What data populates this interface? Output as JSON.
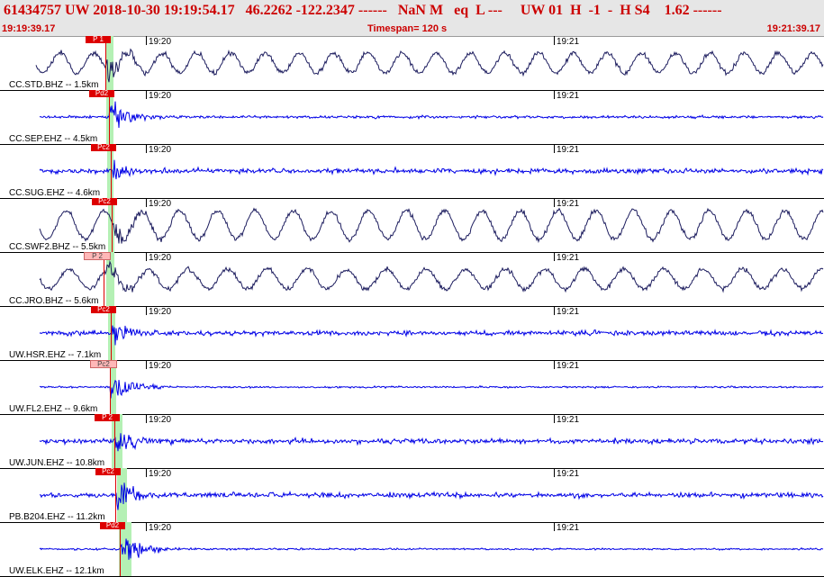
{
  "header": {
    "title": "61434757 UW 2018-10-30 19:19:54.17   46.2262 -122.2347 ------   NaN M   eq  L ---     UW 01  H  -1  -  H S4    1.62 ------",
    "start_time": "19:19:39.17",
    "timespan": "Timespan= 120 s",
    "end_time": "19:21:39.17"
  },
  "time_ticks": [
    "19:20",
    "19:21"
  ],
  "colors": {
    "vertical_bhz": "#1c1c5e",
    "ehz": "#0000e6",
    "pick": "#dd0000",
    "window": "#b4f0b4"
  },
  "traces": [
    {
      "station": "CC.STD.BHZ -- 1.5km",
      "pick": "P 1",
      "kind": "bhz"
    },
    {
      "station": "CC.SEP.EHZ -- 4.5km",
      "pick": "Pd2",
      "kind": "ehz"
    },
    {
      "station": "CC.SUG.EHZ -- 4.6km",
      "pick": "Pc2",
      "kind": "ehz"
    },
    {
      "station": "CC.SWF2.BHZ -- 5.5km",
      "pick": "Pc2",
      "kind": "bhz"
    },
    {
      "station": "CC.JRO.BHZ -- 5.6km",
      "pick": "P 2",
      "kind": "bhz"
    },
    {
      "station": "UW.HSR.EHZ -- 7.1km",
      "pick": "Pc2",
      "kind": "ehz"
    },
    {
      "station": "UW.FL2.EHZ -- 9.6km",
      "pick": "Pc2",
      "kind": "ehz"
    },
    {
      "station": "UW.JUN.EHZ -- 10.8km",
      "pick": "P 2",
      "kind": "ehz"
    },
    {
      "station": "PB.B204.EHZ -- 11.2km",
      "pick": "Pc2",
      "kind": "ehz"
    },
    {
      "station": "UW.ELK.EHZ -- 12.1km",
      "pick": "Pd2",
      "kind": "ehz"
    }
  ]
}
